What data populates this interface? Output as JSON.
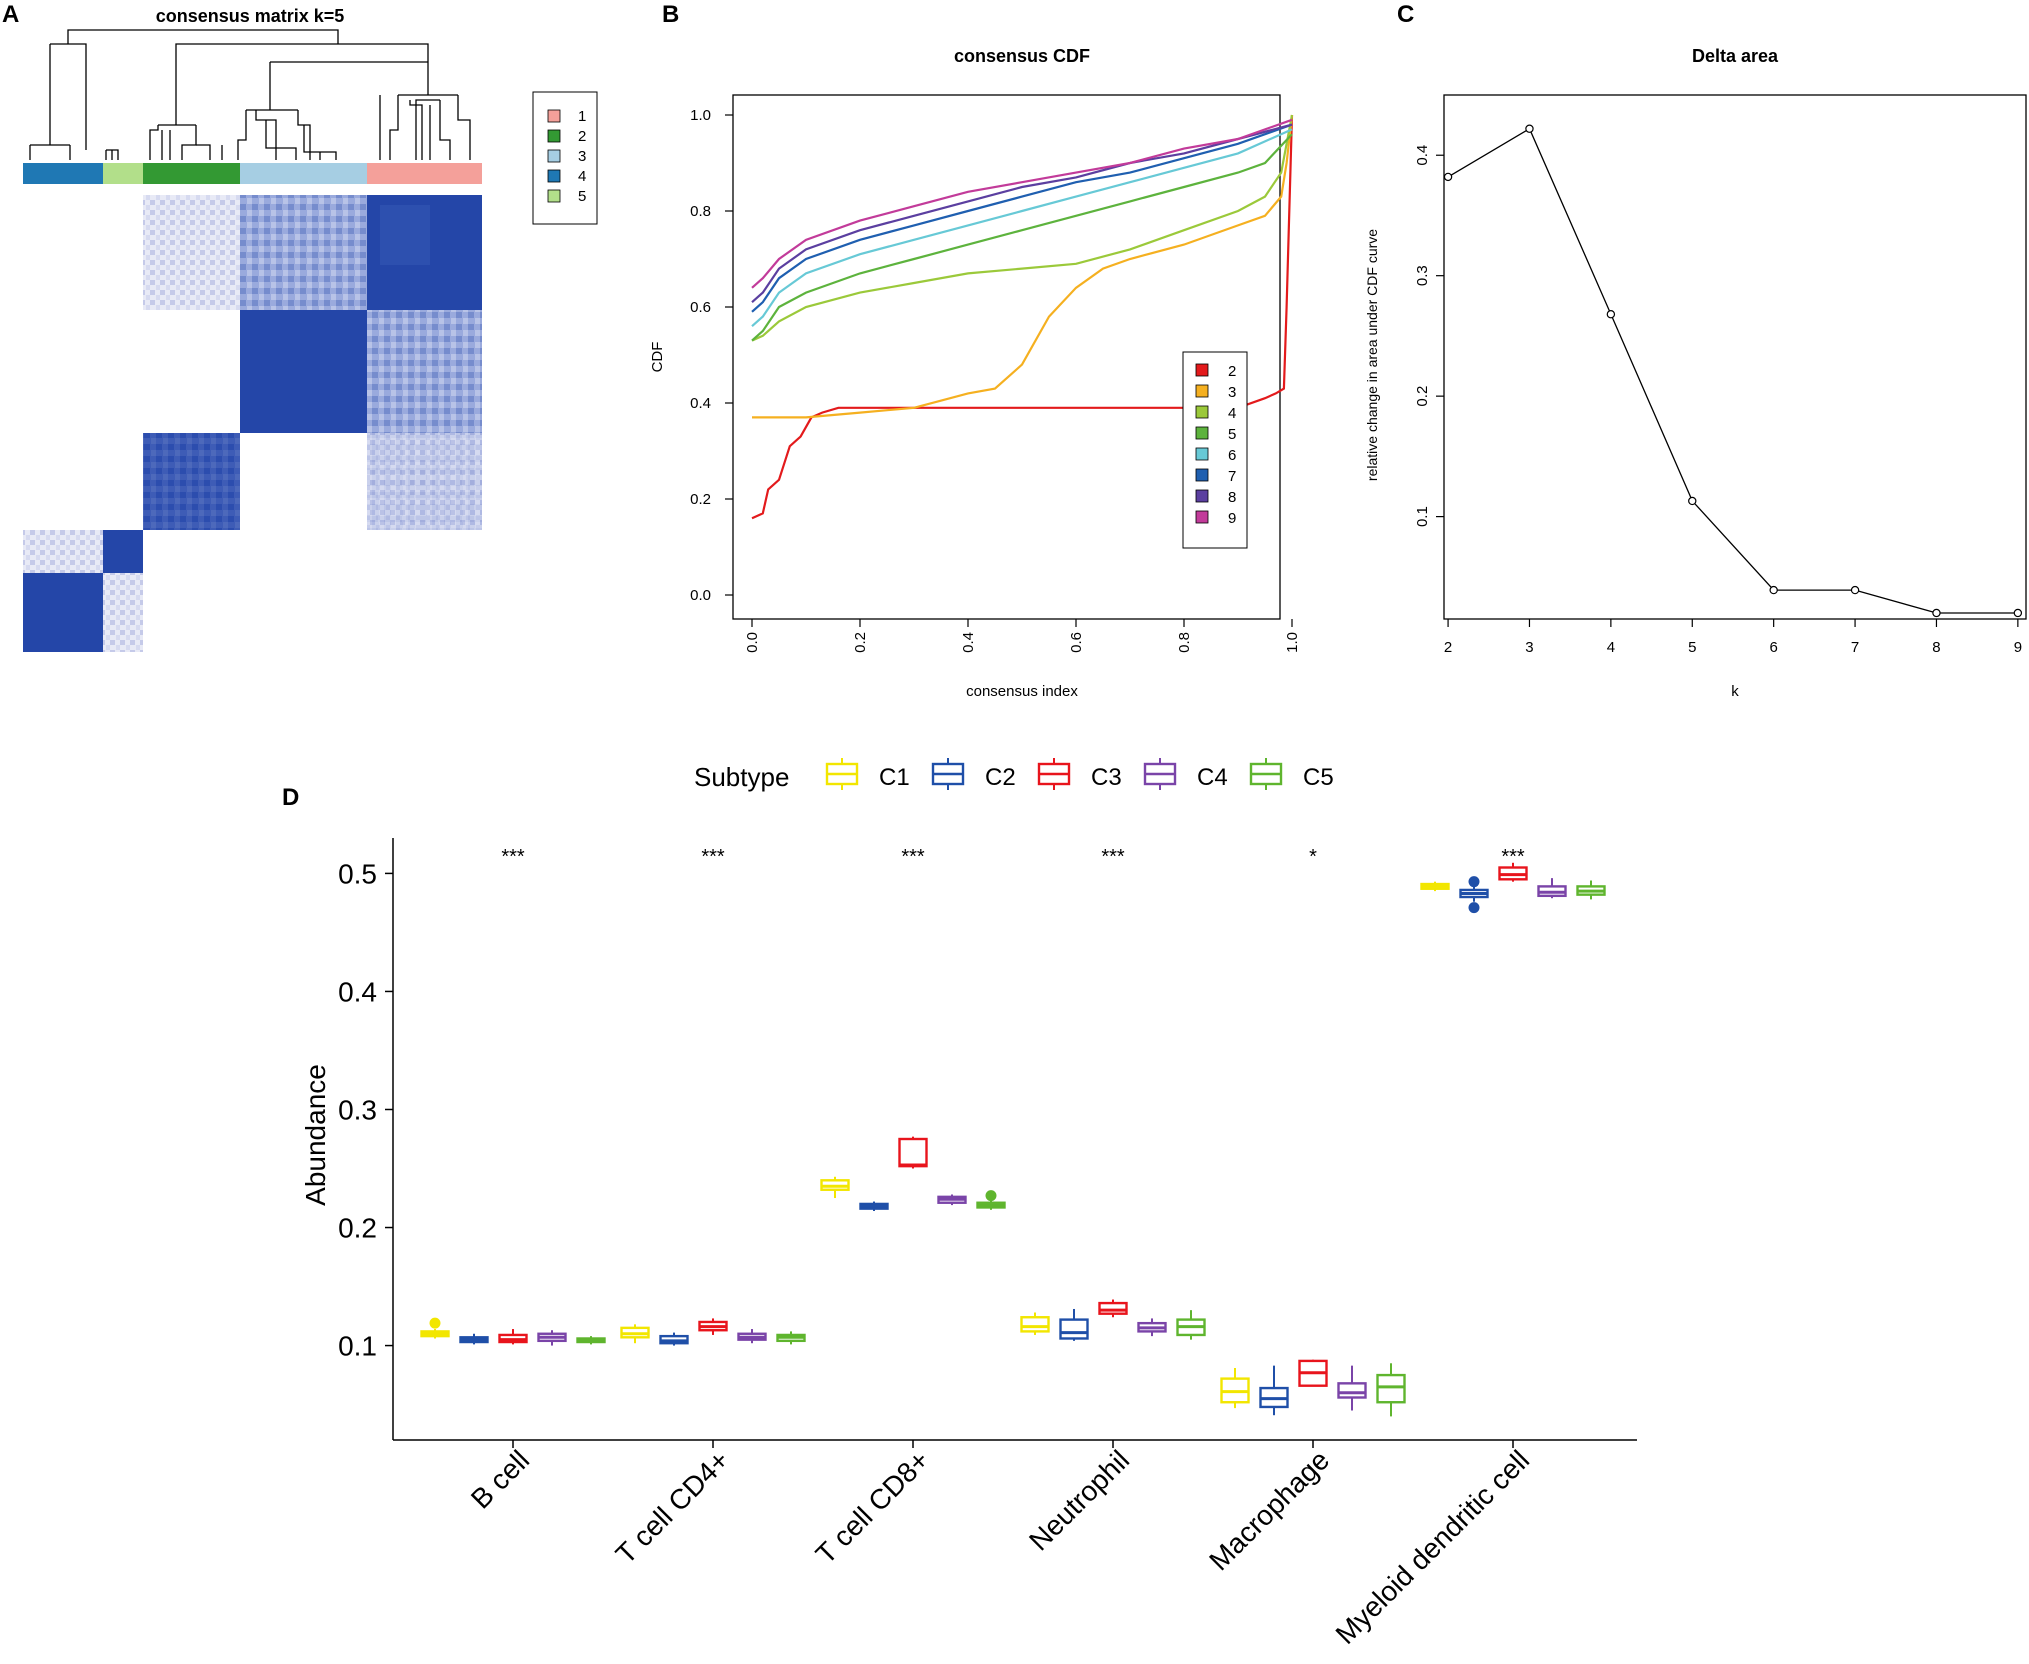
{
  "colors": {
    "heat_dark": "#2446A8",
    "cluster": {
      "1": "#F4A09A",
      "2": "#339933",
      "3": "#A6CEE3",
      "4": "#1F78B4",
      "5": "#B2DF8A"
    },
    "cdf": {
      "2": "#E31A1C",
      "3": "#F5B020",
      "4": "#9BC93A",
      "5": "#5DB33D",
      "6": "#67C9D6",
      "7": "#1F5FB0",
      "8": "#5B3FA0",
      "9": "#C23B9A"
    },
    "subtype": {
      "C1": "#F2E600",
      "C2": "#1F4FA8",
      "C3": "#E8141C",
      "C4": "#7A44A8",
      "C5": "#5FB52E"
    }
  },
  "panels": {
    "A": {
      "label": "A",
      "title": "consensus matrix k=5",
      "legend": [
        "1",
        "2",
        "3",
        "4",
        "5"
      ]
    },
    "B": {
      "label": "B"
    },
    "C": {
      "label": "C"
    },
    "D": {
      "label": "D"
    }
  },
  "chart_data": [
    {
      "id": "cdf",
      "type": "line",
      "title": "consensus CDF",
      "xlabel": "consensus index",
      "ylabel": "CDF",
      "xlim": [
        0,
        1
      ],
      "ylim": [
        0,
        1
      ],
      "xticks": [
        "0.0",
        "0.2",
        "0.4",
        "0.6",
        "0.8",
        "1.0"
      ],
      "yticks": [
        "0.0",
        "0.2",
        "0.4",
        "0.6",
        "0.8",
        "1.0"
      ],
      "legend_position": "bottom-right",
      "series": [
        {
          "name": "2",
          "points": [
            [
              0,
              0.16
            ],
            [
              0.02,
              0.17
            ],
            [
              0.03,
              0.22
            ],
            [
              0.05,
              0.24
            ],
            [
              0.07,
              0.31
            ],
            [
              0.09,
              0.33
            ],
            [
              0.11,
              0.37
            ],
            [
              0.13,
              0.38
            ],
            [
              0.16,
              0.39
            ],
            [
              0.3,
              0.39
            ],
            [
              0.6,
              0.39
            ],
            [
              0.9,
              0.39
            ],
            [
              0.95,
              0.41
            ],
            [
              0.97,
              0.42
            ],
            [
              0.985,
              0.43
            ],
            [
              0.99,
              0.6
            ],
            [
              1.0,
              1.0
            ]
          ]
        },
        {
          "name": "3",
          "points": [
            [
              0,
              0.37
            ],
            [
              0.1,
              0.37
            ],
            [
              0.2,
              0.38
            ],
            [
              0.3,
              0.39
            ],
            [
              0.4,
              0.42
            ],
            [
              0.45,
              0.43
            ],
            [
              0.5,
              0.48
            ],
            [
              0.55,
              0.58
            ],
            [
              0.6,
              0.64
            ],
            [
              0.65,
              0.68
            ],
            [
              0.7,
              0.7
            ],
            [
              0.8,
              0.73
            ],
            [
              0.9,
              0.77
            ],
            [
              0.95,
              0.79
            ],
            [
              0.98,
              0.83
            ],
            [
              0.99,
              0.9
            ],
            [
              1.0,
              1.0
            ]
          ]
        },
        {
          "name": "4",
          "points": [
            [
              0,
              0.53
            ],
            [
              0.02,
              0.54
            ],
            [
              0.05,
              0.57
            ],
            [
              0.1,
              0.6
            ],
            [
              0.2,
              0.63
            ],
            [
              0.3,
              0.65
            ],
            [
              0.4,
              0.67
            ],
            [
              0.5,
              0.68
            ],
            [
              0.6,
              0.69
            ],
            [
              0.7,
              0.72
            ],
            [
              0.8,
              0.76
            ],
            [
              0.9,
              0.8
            ],
            [
              0.95,
              0.83
            ],
            [
              0.98,
              0.88
            ],
            [
              1.0,
              1.0
            ]
          ]
        },
        {
          "name": "5",
          "points": [
            [
              0,
              0.53
            ],
            [
              0.02,
              0.55
            ],
            [
              0.05,
              0.6
            ],
            [
              0.1,
              0.63
            ],
            [
              0.2,
              0.67
            ],
            [
              0.3,
              0.7
            ],
            [
              0.4,
              0.73
            ],
            [
              0.5,
              0.76
            ],
            [
              0.6,
              0.79
            ],
            [
              0.7,
              0.82
            ],
            [
              0.8,
              0.85
            ],
            [
              0.9,
              0.88
            ],
            [
              0.95,
              0.9
            ],
            [
              1.0,
              0.96
            ]
          ]
        },
        {
          "name": "6",
          "points": [
            [
              0,
              0.56
            ],
            [
              0.02,
              0.58
            ],
            [
              0.05,
              0.63
            ],
            [
              0.1,
              0.67
            ],
            [
              0.2,
              0.71
            ],
            [
              0.3,
              0.74
            ],
            [
              0.4,
              0.77
            ],
            [
              0.5,
              0.8
            ],
            [
              0.6,
              0.83
            ],
            [
              0.7,
              0.86
            ],
            [
              0.8,
              0.89
            ],
            [
              0.9,
              0.92
            ],
            [
              1.0,
              0.97
            ]
          ]
        },
        {
          "name": "7",
          "points": [
            [
              0,
              0.59
            ],
            [
              0.02,
              0.61
            ],
            [
              0.05,
              0.66
            ],
            [
              0.1,
              0.7
            ],
            [
              0.2,
              0.74
            ],
            [
              0.3,
              0.77
            ],
            [
              0.4,
              0.8
            ],
            [
              0.5,
              0.83
            ],
            [
              0.6,
              0.86
            ],
            [
              0.7,
              0.88
            ],
            [
              0.8,
              0.91
            ],
            [
              0.9,
              0.94
            ],
            [
              1.0,
              0.98
            ]
          ]
        },
        {
          "name": "8",
          "points": [
            [
              0,
              0.61
            ],
            [
              0.02,
              0.63
            ],
            [
              0.05,
              0.68
            ],
            [
              0.1,
              0.72
            ],
            [
              0.2,
              0.76
            ],
            [
              0.3,
              0.79
            ],
            [
              0.4,
              0.82
            ],
            [
              0.5,
              0.85
            ],
            [
              0.6,
              0.87
            ],
            [
              0.7,
              0.9
            ],
            [
              0.8,
              0.92
            ],
            [
              0.9,
              0.95
            ],
            [
              1.0,
              0.98
            ]
          ]
        },
        {
          "name": "9",
          "points": [
            [
              0,
              0.64
            ],
            [
              0.02,
              0.66
            ],
            [
              0.05,
              0.7
            ],
            [
              0.1,
              0.74
            ],
            [
              0.2,
              0.78
            ],
            [
              0.3,
              0.81
            ],
            [
              0.4,
              0.84
            ],
            [
              0.5,
              0.86
            ],
            [
              0.6,
              0.88
            ],
            [
              0.7,
              0.9
            ],
            [
              0.8,
              0.93
            ],
            [
              0.9,
              0.95
            ],
            [
              1.0,
              0.99
            ]
          ]
        }
      ]
    },
    {
      "id": "delta",
      "type": "line",
      "title": "Delta area",
      "xlabel": "k",
      "ylabel": "relative change in area under CDF curve",
      "xlim": [
        1.95,
        9.1
      ],
      "ylim": [
        0.015,
        0.45
      ],
      "xticks": [
        "2",
        "3",
        "4",
        "5",
        "6",
        "7",
        "8",
        "9"
      ],
      "yticks": [
        "0.1",
        "0.2",
        "0.3",
        "0.4"
      ],
      "x": [
        2,
        3,
        4,
        5,
        6,
        7,
        8,
        9
      ],
      "values": [
        0.382,
        0.422,
        0.268,
        0.113,
        0.039,
        0.039,
        0.02,
        0.02
      ]
    },
    {
      "id": "abundance",
      "type": "box",
      "ylabel": "Abundance",
      "ylim": [
        0.02,
        0.53
      ],
      "yticks": [
        "0.1",
        "0.2",
        "0.3",
        "0.4",
        "0.5"
      ],
      "legend_title": "Subtype",
      "legend_position": "top",
      "subtypes": [
        "C1",
        "C2",
        "C3",
        "C4",
        "C5"
      ],
      "categories": [
        "B cell",
        "T cell CD4+",
        "T cell CD8+",
        "Neutrophil",
        "Macrophage",
        "Myeloid dendritic cell"
      ],
      "significance": [
        "***",
        "***",
        "***",
        "***",
        "*",
        "***"
      ],
      "boxes": [
        [
          {
            "q1": 0.108,
            "med": 0.11,
            "q3": 0.112,
            "lo": 0.106,
            "hi": 0.114,
            "out": [
              0.119
            ]
          },
          {
            "q1": 0.103,
            "med": 0.105,
            "q3": 0.107,
            "lo": 0.101,
            "hi": 0.11,
            "out": []
          },
          {
            "q1": 0.103,
            "med": 0.105,
            "q3": 0.109,
            "lo": 0.101,
            "hi": 0.114,
            "out": []
          },
          {
            "q1": 0.104,
            "med": 0.107,
            "q3": 0.11,
            "lo": 0.1,
            "hi": 0.113,
            "out": []
          },
          {
            "q1": 0.103,
            "med": 0.105,
            "q3": 0.106,
            "lo": 0.101,
            "hi": 0.108,
            "out": []
          }
        ],
        [
          {
            "q1": 0.107,
            "med": 0.11,
            "q3": 0.115,
            "lo": 0.102,
            "hi": 0.118,
            "out": []
          },
          {
            "q1": 0.102,
            "med": 0.104,
            "q3": 0.108,
            "lo": 0.1,
            "hi": 0.111,
            "out": []
          },
          {
            "q1": 0.113,
            "med": 0.116,
            "q3": 0.12,
            "lo": 0.109,
            "hi": 0.123,
            "out": []
          },
          {
            "q1": 0.105,
            "med": 0.107,
            "q3": 0.11,
            "lo": 0.102,
            "hi": 0.114,
            "out": []
          },
          {
            "q1": 0.104,
            "med": 0.107,
            "q3": 0.109,
            "lo": 0.101,
            "hi": 0.112,
            "out": []
          }
        ],
        [
          {
            "q1": 0.232,
            "med": 0.235,
            "q3": 0.24,
            "lo": 0.225,
            "hi": 0.243,
            "out": []
          },
          {
            "q1": 0.216,
            "med": 0.218,
            "q3": 0.22,
            "lo": 0.214,
            "hi": 0.222,
            "out": []
          },
          {
            "q1": 0.252,
            "med": 0.253,
            "q3": 0.275,
            "lo": 0.25,
            "hi": 0.277,
            "out": []
          },
          {
            "q1": 0.221,
            "med": 0.224,
            "q3": 0.226,
            "lo": 0.219,
            "hi": 0.228,
            "out": []
          },
          {
            "q1": 0.217,
            "med": 0.219,
            "q3": 0.221,
            "lo": 0.215,
            "hi": 0.223,
            "out": [
              0.227
            ]
          }
        ],
        [
          {
            "q1": 0.112,
            "med": 0.116,
            "q3": 0.124,
            "lo": 0.109,
            "hi": 0.128,
            "out": []
          },
          {
            "q1": 0.106,
            "med": 0.111,
            "q3": 0.122,
            "lo": 0.104,
            "hi": 0.131,
            "out": []
          },
          {
            "q1": 0.127,
            "med": 0.13,
            "q3": 0.136,
            "lo": 0.124,
            "hi": 0.139,
            "out": []
          },
          {
            "q1": 0.112,
            "med": 0.115,
            "q3": 0.119,
            "lo": 0.108,
            "hi": 0.123,
            "out": []
          },
          {
            "q1": 0.109,
            "med": 0.116,
            "q3": 0.122,
            "lo": 0.105,
            "hi": 0.13,
            "out": []
          }
        ],
        [
          {
            "q1": 0.052,
            "med": 0.061,
            "q3": 0.072,
            "lo": 0.047,
            "hi": 0.081,
            "out": []
          },
          {
            "q1": 0.048,
            "med": 0.055,
            "q3": 0.064,
            "lo": 0.041,
            "hi": 0.083,
            "out": []
          },
          {
            "q1": 0.066,
            "med": 0.077,
            "q3": 0.087,
            "lo": 0.066,
            "hi": 0.088,
            "out": []
          },
          {
            "q1": 0.056,
            "med": 0.06,
            "q3": 0.068,
            "lo": 0.045,
            "hi": 0.083,
            "out": []
          },
          {
            "q1": 0.052,
            "med": 0.065,
            "q3": 0.075,
            "lo": 0.04,
            "hi": 0.085,
            "out": []
          }
        ],
        [
          {
            "q1": 0.487,
            "med": 0.489,
            "q3": 0.491,
            "lo": 0.485,
            "hi": 0.493,
            "out": []
          },
          {
            "q1": 0.48,
            "med": 0.483,
            "q3": 0.486,
            "lo": 0.476,
            "hi": 0.49,
            "out": [
              0.493,
              0.471
            ]
          },
          {
            "q1": 0.495,
            "med": 0.499,
            "q3": 0.505,
            "lo": 0.493,
            "hi": 0.509,
            "out": []
          },
          {
            "q1": 0.481,
            "med": 0.484,
            "q3": 0.489,
            "lo": 0.479,
            "hi": 0.496,
            "out": []
          },
          {
            "q1": 0.482,
            "med": 0.485,
            "q3": 0.489,
            "lo": 0.478,
            "hi": 0.494,
            "out": []
          }
        ]
      ]
    }
  ]
}
